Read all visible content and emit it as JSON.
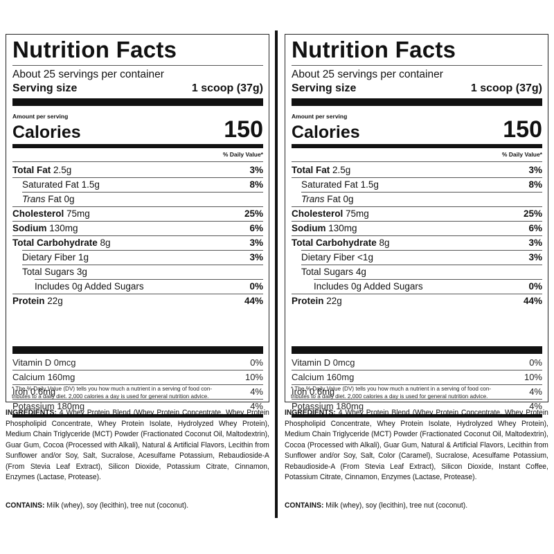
{
  "panels": [
    {
      "title": "Nutrition Facts",
      "servings_per_container": "About 25 servings per container",
      "serving_size_label": "Serving size",
      "serving_size_value": "1 scoop (37g)",
      "amount_per_serving": "Amount per serving",
      "calories_label": "Calories",
      "calories_value": "150",
      "daily_value_header": "% Daily Value*",
      "nutrients": [
        {
          "name": "Total Fat",
          "amount": "2.5g",
          "dv": "3%"
        },
        {
          "name": "Saturated Fat",
          "amount": "1.5g",
          "dv": "8%"
        },
        {
          "name": "Trans",
          "amount": "Fat 0g",
          "dv": ""
        },
        {
          "name": "Cholesterol",
          "amount": "75mg",
          "dv": "25%"
        },
        {
          "name": "Sodium",
          "amount": "130mg",
          "dv": "6%"
        },
        {
          "name": "Total Carbohydrate",
          "amount": "8g",
          "dv": "3%"
        },
        {
          "name": "Dietary Fiber",
          "amount": "1g",
          "dv": "3%"
        },
        {
          "name": "Total Sugars",
          "amount": "3g",
          "dv": ""
        },
        {
          "name": "Includes 0g Added Sugars",
          "amount": "",
          "dv": "0%"
        },
        {
          "name": "Protein",
          "amount": "22g",
          "dv": "44%"
        }
      ],
      "vitamins": [
        {
          "name": "Vitamin D 0mcg",
          "dv": "0%"
        },
        {
          "name": "Calcium 160mg",
          "dv": "10%"
        },
        {
          "name": "Iron 0.6mg",
          "dv": "4%"
        },
        {
          "name": "Potassium 180mg",
          "dv": "4%"
        }
      ],
      "footnote_line1": "* The % Daily Value (DV) tells you how much a nutrient in a serving of food con-",
      "footnote_line2": "tributes to a daily diet. 2,000 calories a day is used for general nutrition advice.",
      "ingredients_label": "INGREDIENTS:",
      "ingredients_text": "4 Whey Protein Blend (Whey Protein Concentrate, Whey Protein Phospholipid Concentrate, Whey Protein Isolate, Hydrolyzed Whey Protein), Medium Chain Triglyceride (MCT) Powder (Fractionated Coconut Oil, Maltodextrin), Guar Gum, Cocoa (Processed with Alkali), Natural & Artificial Flavors, Lecithin from Sunflower and/or Soy, Salt, Sucralose, Acesulfame Potassium, Rebaudioside-A (From Stevia Leaf Extract), Silicon Dioxide, Potassium Citrate, Cinnamon, Enzymes (Lactase, Protease).",
      "contains_label": "CONTAINS:",
      "contains_text": "Milk (whey), soy (lecithin), tree nut (coconut)."
    },
    {
      "title": "Nutrition Facts",
      "servings_per_container": "About 25 servings per container",
      "serving_size_label": "Serving size",
      "serving_size_value": "1 scoop (37g)",
      "amount_per_serving": "Amount per serving",
      "calories_label": "Calories",
      "calories_value": "150",
      "daily_value_header": "% Daily Value*",
      "nutrients": [
        {
          "name": "Total Fat",
          "amount": "2.5g",
          "dv": "3%"
        },
        {
          "name": "Saturated Fat",
          "amount": "1.5g",
          "dv": "8%"
        },
        {
          "name": "Trans",
          "amount": "Fat 0g",
          "dv": ""
        },
        {
          "name": "Cholesterol",
          "amount": "75mg",
          "dv": "25%"
        },
        {
          "name": "Sodium",
          "amount": "130mg",
          "dv": "6%"
        },
        {
          "name": "Total Carbohydrate",
          "amount": "8g",
          "dv": "3%"
        },
        {
          "name": "Dietary Fiber",
          "amount": "<1g",
          "dv": "3%"
        },
        {
          "name": "Total Sugars",
          "amount": "4g",
          "dv": ""
        },
        {
          "name": "Includes 0g Added Sugars",
          "amount": "",
          "dv": "0%"
        },
        {
          "name": "Protein",
          "amount": "22g",
          "dv": "44%"
        }
      ],
      "vitamins": [
        {
          "name": "Vitamin D 0mcg",
          "dv": "0%"
        },
        {
          "name": "Calcium 160mg",
          "dv": "10%"
        },
        {
          "name": "Iron 0.6mg",
          "dv": "4%"
        },
        {
          "name": "Potassium 180mg",
          "dv": "4%"
        }
      ],
      "footnote_line1": "* The % Daily Value (DV) tells you how much a nutrient in a serving of food con-",
      "footnote_line2": "tributes to a daily diet. 2,000 calories a day is used for general nutrition advice.",
      "ingredients_label": "INGREDIENTS:",
      "ingredients_text": "4 Whey Protein Blend (Whey Protein Concentrate, Whey Protein Phospholipid Concentrate, Whey Protein Isolate, Hydrolyzed Whey Protein), Medium Chain Triglyceride (MCT) Powder (Fractionated Coconut Oil, Maltodextrin), Cocoa (Processed with Alkali), Guar Gum, Natural & Artificial Flavors, Lecithin from Sunflower and/or Soy, Salt, Color (Caramel), Sucralose, Acesulfame Potassium, Rebaudioside-A (From Stevia Leaf Extract), Silicon Dioxide, Instant Coffee, Potassium Citrate, Cinnamon, Enzymes (Lactase, Protease).",
      "contains_label": "CONTAINS:",
      "contains_text": "Milk (whey), soy (lecithin), tree nut (coconut)."
    }
  ]
}
